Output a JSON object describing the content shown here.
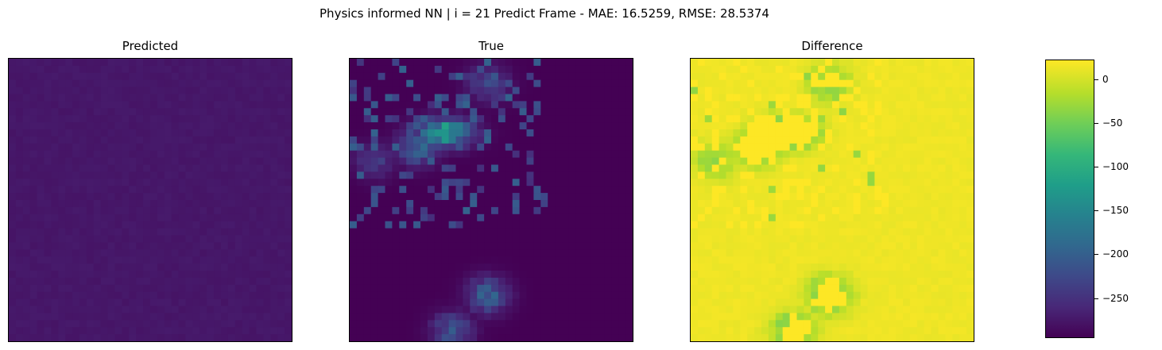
{
  "title": "Physics informed NN | i = 21 Predict Frame - MAE: 16.5259, RMSE: 28.5374",
  "chart_data": [
    {
      "type": "heatmap",
      "title": "Predicted",
      "grid_size": 40,
      "colormap": "viridis",
      "vmin": -295,
      "vmax": 22,
      "description_values": {
        "uniform_value": -275,
        "noise_range": 6
      }
    },
    {
      "type": "heatmap",
      "title": "True",
      "grid_size": 40,
      "colormap": "viridis",
      "vmin": -295,
      "vmax": 22,
      "background_value": -295,
      "features": [
        {
          "x": 13,
          "y": 10,
          "peak": -60
        },
        {
          "x": 9,
          "y": 12,
          "peak": -160
        },
        {
          "x": 19,
          "y": 3,
          "peak": -210
        },
        {
          "x": 19,
          "y": 33,
          "peak": -170
        },
        {
          "x": 14,
          "y": 38,
          "peak": -190
        },
        {
          "x": 3,
          "y": 14,
          "peak": -230
        }
      ]
    },
    {
      "type": "heatmap",
      "title": "Difference",
      "grid_size": 40,
      "colormap": "viridis",
      "vmin": -295,
      "vmax": 22,
      "note_values": {
        "background_value": 15,
        "min_value": -295
      }
    }
  ],
  "colorbar": {
    "ticks": [
      {
        "value": 0,
        "label": "0"
      },
      {
        "value": -50,
        "label": "−50"
      },
      {
        "value": -100,
        "label": "−100"
      },
      {
        "value": -150,
        "label": "−150"
      },
      {
        "value": -200,
        "label": "−200"
      },
      {
        "value": -250,
        "label": "−250"
      }
    ],
    "vmin": -295,
    "vmax": 22
  }
}
